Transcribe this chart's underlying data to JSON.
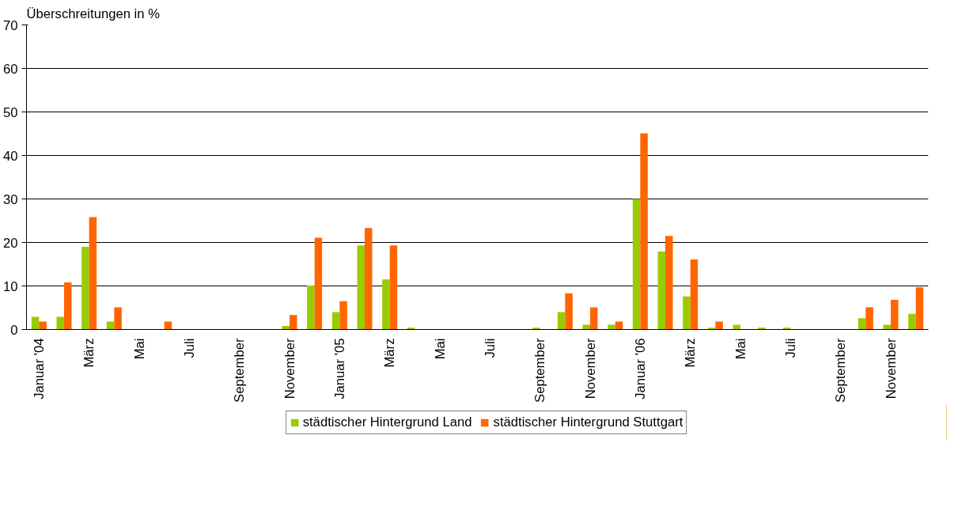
{
  "chart_data": {
    "type": "bar",
    "ylabel": "Überschreitungen in %",
    "categories": [
      "Januar '04",
      null,
      "März",
      null,
      "Mai",
      null,
      "Juli",
      null,
      "September",
      null,
      "November",
      null,
      "Januar '05",
      null,
      "März",
      null,
      "Mai",
      null,
      "Juli",
      null,
      "September",
      null,
      "November",
      null,
      "Januar '06",
      null,
      "März",
      null,
      "Mai",
      null,
      "Juli",
      null,
      "September",
      null,
      "November",
      null
    ],
    "series": [
      {
        "name": "städtischer Hintergrund Land",
        "color": "#99cc00",
        "values": [
          2.9,
          2.9,
          19.0,
          1.8,
          0,
          0,
          0,
          0,
          0,
          0,
          0.8,
          10.1,
          4.0,
          19.3,
          11.5,
          0.4,
          0,
          0,
          0,
          0,
          0.4,
          4.0,
          1.1,
          1.1,
          30.0,
          17.9,
          7.6,
          0.4,
          1.1,
          0.4,
          0.4,
          0,
          0,
          2.6,
          1.1,
          3.6
        ]
      },
      {
        "name": "städtischer Hintergrund Stuttgart",
        "color": "#ff6600",
        "values": [
          1.8,
          10.8,
          25.8,
          5.1,
          0,
          1.8,
          0,
          0,
          0,
          0,
          3.3,
          21.1,
          6.5,
          23.3,
          19.3,
          0,
          0,
          0,
          0,
          0,
          0,
          8.3,
          5.1,
          1.8,
          45.1,
          21.5,
          16.1,
          1.8,
          0,
          0,
          0,
          0,
          0,
          5.1,
          6.8,
          9.7
        ]
      }
    ],
    "ylim": [
      0,
      70
    ],
    "yticks": [
      0,
      10,
      20,
      30,
      40,
      50,
      60,
      70
    ],
    "grid": "y",
    "legend": "bottom"
  }
}
